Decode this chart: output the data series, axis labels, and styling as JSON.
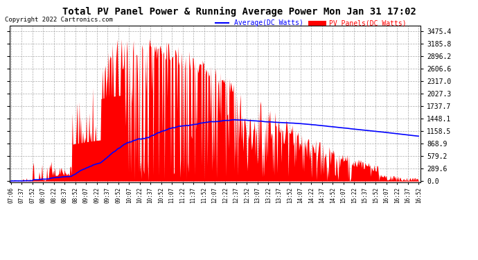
{
  "title": "Total PV Panel Power & Running Average Power Mon Jan 31 17:02",
  "copyright": "Copyright 2022 Cartronics.com",
  "legend_avg": "Average(DC Watts)",
  "legend_pv": "PV Panels(DC Watts)",
  "ylabel_values": [
    0.0,
    289.6,
    579.2,
    868.9,
    1158.5,
    1448.1,
    1737.7,
    2027.3,
    2317.0,
    2606.6,
    2896.2,
    3185.8,
    3475.4
  ],
  "x_labels": [
    "07:06",
    "07:37",
    "07:52",
    "08:07",
    "08:22",
    "08:37",
    "08:52",
    "09:07",
    "09:22",
    "09:37",
    "09:52",
    "10:07",
    "10:22",
    "10:37",
    "10:52",
    "11:07",
    "11:22",
    "11:37",
    "11:52",
    "12:07",
    "12:22",
    "12:37",
    "12:52",
    "13:07",
    "13:22",
    "13:37",
    "13:52",
    "14:07",
    "14:22",
    "14:37",
    "14:52",
    "15:07",
    "15:22",
    "15:37",
    "15:52",
    "16:07",
    "16:22",
    "16:37",
    "16:52"
  ],
  "pv_color": "#ff0000",
  "avg_color": "#0000ff",
  "bg_color": "#ffffff",
  "grid_color": "#aaaaaa",
  "title_fontsize": 10,
  "copyright_color": "#000000",
  "copyright_fontsize": 6.5
}
